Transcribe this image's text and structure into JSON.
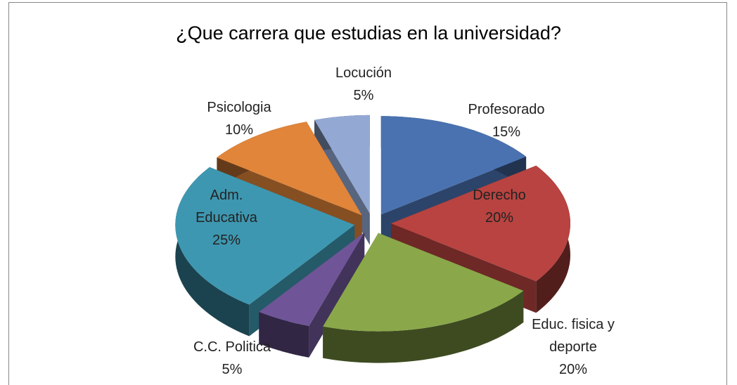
{
  "chart_data": {
    "type": "pie",
    "title": "¿Que carrera que estudias en la universidad?",
    "categories": [
      "Profesorado",
      "Derecho",
      "Educ. fisica y deporte",
      "C.C. Politica",
      "Adm. Educativa",
      "Psicologia",
      "Locución"
    ],
    "values": [
      15,
      20,
      20,
      5,
      25,
      10,
      5
    ],
    "value_labels": [
      "15%",
      "20%",
      "20%",
      "5%",
      "25%",
      "10%",
      "5%"
    ],
    "colors": [
      "#4a72b0",
      "#b84340",
      "#8aa84a",
      "#6f5597",
      "#3e97b0",
      "#e0853a",
      "#93a9d4"
    ]
  }
}
